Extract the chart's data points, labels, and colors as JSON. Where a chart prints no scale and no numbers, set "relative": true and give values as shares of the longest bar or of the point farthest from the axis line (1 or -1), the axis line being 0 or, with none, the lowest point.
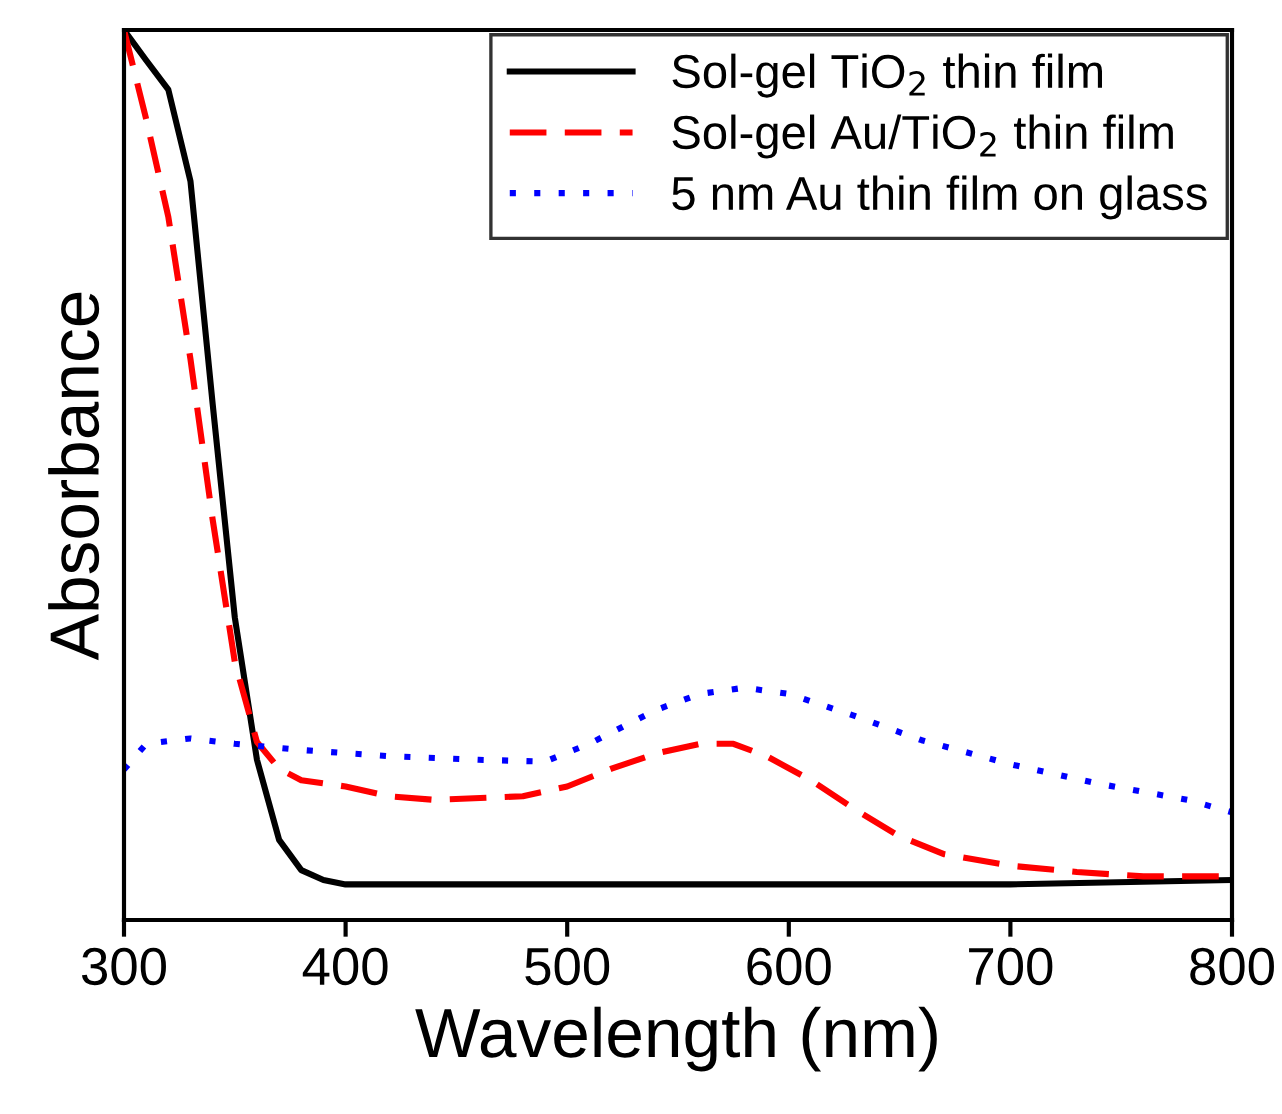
{
  "chart_data": {
    "type": "line",
    "xlabel": "Wavelength (nm)",
    "ylabel": "Absorbance",
    "relative": true,
    "xlim": [
      300,
      800
    ],
    "xticks": [
      300,
      400,
      500,
      600,
      700,
      800
    ],
    "tick_labels": "x",
    "legend": "top right",
    "grid": false,
    "series": [
      {
        "name": "Sol-gel TiO$_{2}$ thin film",
        "color": "#000000",
        "line_style": "solid",
        "x": [
          300,
          310,
          320,
          330,
          340,
          350,
          360,
          370,
          380,
          390,
          400,
          500,
          600,
          700,
          800
        ],
        "values": [
          1.0,
          0.966,
          0.933,
          0.83,
          0.58,
          0.34,
          0.18,
          0.09,
          0.056,
          0.045,
          0.04,
          0.04,
          0.04,
          0.04,
          0.045
        ]
      },
      {
        "name": "Sol-gel Au/TiO$_{2}$ thin film",
        "color": "#ff0000",
        "line_style": "dashed",
        "x": [
          300,
          310,
          320,
          330,
          340,
          350,
          360,
          370,
          380,
          400,
          420,
          440,
          480,
          500,
          520,
          540,
          560,
          575,
          590,
          610,
          630,
          650,
          670,
          700,
          730,
          760,
          800
        ],
        "values": [
          1.0,
          0.9,
          0.79,
          0.63,
          0.45,
          0.29,
          0.2,
          0.17,
          0.157,
          0.15,
          0.139,
          0.135,
          0.139,
          0.15,
          0.17,
          0.187,
          0.198,
          0.198,
          0.184,
          0.157,
          0.124,
          0.094,
          0.074,
          0.061,
          0.054,
          0.049,
          0.049
        ]
      },
      {
        "name": "5 nm Au thin film on glass",
        "color": "#0000ff",
        "line_style": "dotted",
        "x": [
          300,
          310,
          330,
          350,
          380,
          420,
          460,
          490,
          510,
          540,
          560,
          580,
          600,
          630,
          660,
          700,
          740,
          780,
          800
        ],
        "values": [
          0.169,
          0.198,
          0.204,
          0.198,
          0.191,
          0.184,
          0.18,
          0.178,
          0.198,
          0.236,
          0.254,
          0.261,
          0.254,
          0.229,
          0.202,
          0.175,
          0.153,
          0.135,
          0.121
        ]
      }
    ]
  }
}
